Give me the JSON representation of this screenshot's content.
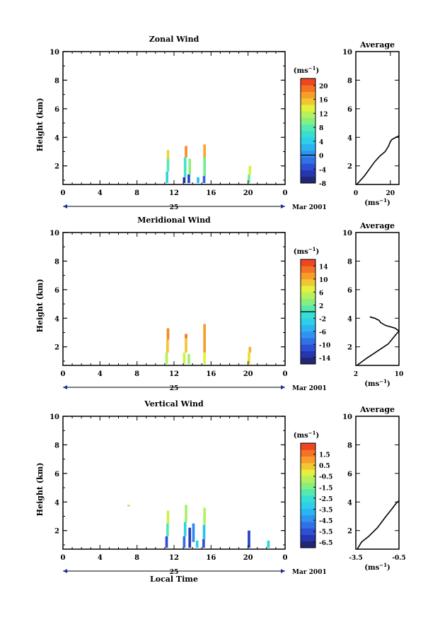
{
  "figure": {
    "xlabel": "Local Time",
    "ylabel": "Height (km)",
    "date_day": "25",
    "date_month": "Mar 2001",
    "avg_title": "Average",
    "unit": "(ms",
    "unit_exp": "−1",
    "unit_close": ")"
  },
  "chart_data": [
    {
      "type": "heatmap",
      "title": "Zonal Wind",
      "xlabel": "Local Time",
      "ylabel": "Height (km)",
      "xlim": [
        0,
        24
      ],
      "ylim": [
        0.7,
        10
      ],
      "xticks": [
        "0",
        "4",
        "8",
        "12",
        "16",
        "20",
        "0"
      ],
      "yticks": [
        "2",
        "4",
        "6",
        "8",
        "10"
      ],
      "colorbar": {
        "label": "(ms−1)",
        "vmin": -8,
        "vmax": 22,
        "ticks": [
          "-8",
          "-4",
          "0",
          "4",
          "8",
          "12",
          "16",
          "20"
        ],
        "zero_line": 0
      },
      "cells": [
        [
          11.25,
          0.8,
          1.6,
          5
        ],
        [
          11.35,
          1.6,
          2.5,
          8
        ],
        [
          11.35,
          2.5,
          3.1,
          15
        ],
        [
          13.1,
          0.8,
          1.2,
          -6
        ],
        [
          13.2,
          1.2,
          2.6,
          7
        ],
        [
          13.3,
          2.6,
          3.4,
          18
        ],
        [
          13.6,
          0.8,
          1.4,
          -4
        ],
        [
          13.7,
          1.4,
          2.5,
          10
        ],
        [
          14.6,
          0.8,
          1.2,
          3
        ],
        [
          15.25,
          0.8,
          1.3,
          -2
        ],
        [
          15.3,
          1.3,
          2.6,
          9
        ],
        [
          15.3,
          2.6,
          3.5,
          17
        ],
        [
          20.1,
          0.8,
          1.4,
          9
        ],
        [
          20.2,
          1.4,
          2.0,
          13
        ]
      ],
      "average": {
        "xlim": [
          0,
          25
        ],
        "xticks": [
          "0",
          "20"
        ],
        "xlabel": "(ms−1)",
        "profile": [
          [
            0.5,
            0.7
          ],
          [
            2,
            0.9
          ],
          [
            5,
            1.3
          ],
          [
            8,
            1.8
          ],
          [
            11,
            2.3
          ],
          [
            14,
            2.7
          ],
          [
            17,
            3.0
          ],
          [
            19,
            3.4
          ],
          [
            20,
            3.7
          ],
          [
            21,
            3.85
          ],
          [
            24,
            4.05
          ],
          [
            25,
            4.1
          ]
        ]
      }
    },
    {
      "type": "heatmap",
      "title": "Meridional Wind",
      "xlabel": "Local Time",
      "ylabel": "Height (km)",
      "xlim": [
        0,
        24
      ],
      "ylim": [
        0.7,
        10
      ],
      "xticks": [
        "0",
        "4",
        "8",
        "12",
        "16",
        "20",
        "0"
      ],
      "yticks": [
        "2",
        "4",
        "6",
        "8",
        "10"
      ],
      "colorbar": {
        "label": "(ms−1)",
        "vmin": -16,
        "vmax": 16,
        "ticks": [
          "-14",
          "-10",
          "-6",
          "-2",
          "2",
          "6",
          "10",
          "14"
        ],
        "zero_line": 0
      },
      "cells": [
        [
          11.2,
          0.8,
          1.6,
          5
        ],
        [
          11.3,
          1.6,
          2.5,
          9
        ],
        [
          11.35,
          2.5,
          3.3,
          12
        ],
        [
          13.1,
          0.8,
          1.6,
          6
        ],
        [
          13.3,
          1.6,
          2.6,
          9
        ],
        [
          13.3,
          2.6,
          2.9,
          13
        ],
        [
          13.6,
          0.8,
          1.5,
          4
        ],
        [
          15.3,
          0.8,
          1.6,
          7
        ],
        [
          15.3,
          1.6,
          3.6,
          11
        ],
        [
          20.1,
          0.8,
          1.6,
          8
        ],
        [
          20.2,
          1.6,
          2.0,
          10
        ]
      ],
      "average": {
        "xlim": [
          2,
          10
        ],
        "xticks": [
          "2",
          "10"
        ],
        "xlabel": "(ms−1)",
        "profile": [
          [
            2.2,
            0.7
          ],
          [
            4,
            1.2
          ],
          [
            6,
            1.7
          ],
          [
            8,
            2.2
          ],
          [
            9.3,
            2.8
          ],
          [
            10,
            3.1
          ],
          [
            9.3,
            3.3
          ],
          [
            7.5,
            3.5
          ],
          [
            6.6,
            3.7
          ],
          [
            6.3,
            3.85
          ],
          [
            5.5,
            4.0
          ],
          [
            4.6,
            4.1
          ]
        ]
      }
    },
    {
      "type": "heatmap",
      "title": "Vertical Wind",
      "xlabel": "Local Time",
      "ylabel": "Height (km)",
      "xlim": [
        0,
        24
      ],
      "ylim": [
        0.7,
        10
      ],
      "xticks": [
        "0",
        "4",
        "8",
        "12",
        "16",
        "20",
        "0"
      ],
      "yticks": [
        "2",
        "4",
        "6",
        "8",
        "10"
      ],
      "colorbar": {
        "label": "(ms−1)",
        "vmin": -7,
        "vmax": 2.5,
        "ticks": [
          "-6.5",
          "-5.5",
          "-4.5",
          "-3.5",
          "-2.5",
          "-1.5",
          "-0.5",
          "0.5",
          "1.5"
        ],
        "zero_line": null
      },
      "cells": [
        [
          7.1,
          3.7,
          3.8,
          0.5
        ],
        [
          11.2,
          0.8,
          1.6,
          -5.5
        ],
        [
          11.3,
          1.6,
          2.5,
          -2
        ],
        [
          11.35,
          2.5,
          3.4,
          -0.5
        ],
        [
          13.1,
          0.8,
          1.6,
          -5
        ],
        [
          13.2,
          1.6,
          2.6,
          -3
        ],
        [
          13.3,
          2.6,
          3.8,
          -1
        ],
        [
          13.7,
          0.8,
          2.2,
          -6
        ],
        [
          14.1,
          1.2,
          2.5,
          -4.5
        ],
        [
          14.5,
          0.8,
          1.3,
          -3
        ],
        [
          15.2,
          0.8,
          1.4,
          -5.5
        ],
        [
          15.25,
          1.4,
          2.4,
          -3.5
        ],
        [
          15.3,
          2.4,
          3.6,
          -0.8
        ],
        [
          20.1,
          0.8,
          2.0,
          -5.8
        ],
        [
          22.2,
          0.8,
          1.3,
          -3
        ]
      ],
      "average": {
        "xlim": [
          -3.5,
          -0.5
        ],
        "xticks": [
          "-3.5",
          "-0.5"
        ],
        "xlabel": "(ms−1)",
        "profile": [
          [
            -3.4,
            0.7
          ],
          [
            -3.1,
            1.2
          ],
          [
            -2.6,
            1.6
          ],
          [
            -2.0,
            2.2
          ],
          [
            -1.7,
            2.6
          ],
          [
            -1.4,
            3.0
          ],
          [
            -1.0,
            3.5
          ],
          [
            -0.7,
            3.9
          ],
          [
            -0.5,
            4.1
          ]
        ]
      }
    }
  ]
}
